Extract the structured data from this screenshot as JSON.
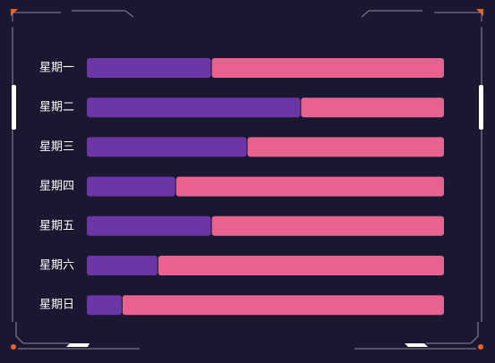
{
  "colors": {
    "background": "#1a1730",
    "frame_line": "#8c8a9e",
    "accent_orange": "#e8632a",
    "accent_white": "#ffffff",
    "series_primary": "#6b35a6",
    "series_remainder": "#e8628f"
  },
  "chart_data": {
    "type": "bar",
    "orientation": "horizontal",
    "stacked": true,
    "categories": [
      "星期一",
      "星期二",
      "星期三",
      "星期四",
      "星期五",
      "星期六",
      "星期日"
    ],
    "series": [
      {
        "values": [
          35,
          60,
          45,
          25,
          35,
          20,
          10
        ],
        "color": "#6b35a6"
      },
      {
        "values": [
          65,
          40,
          55,
          75,
          65,
          80,
          90
        ],
        "color": "#e8628f"
      }
    ],
    "xlim": [
      0,
      100
    ],
    "title": "",
    "xlabel": "",
    "ylabel": "",
    "grid": false,
    "legend": "none"
  }
}
